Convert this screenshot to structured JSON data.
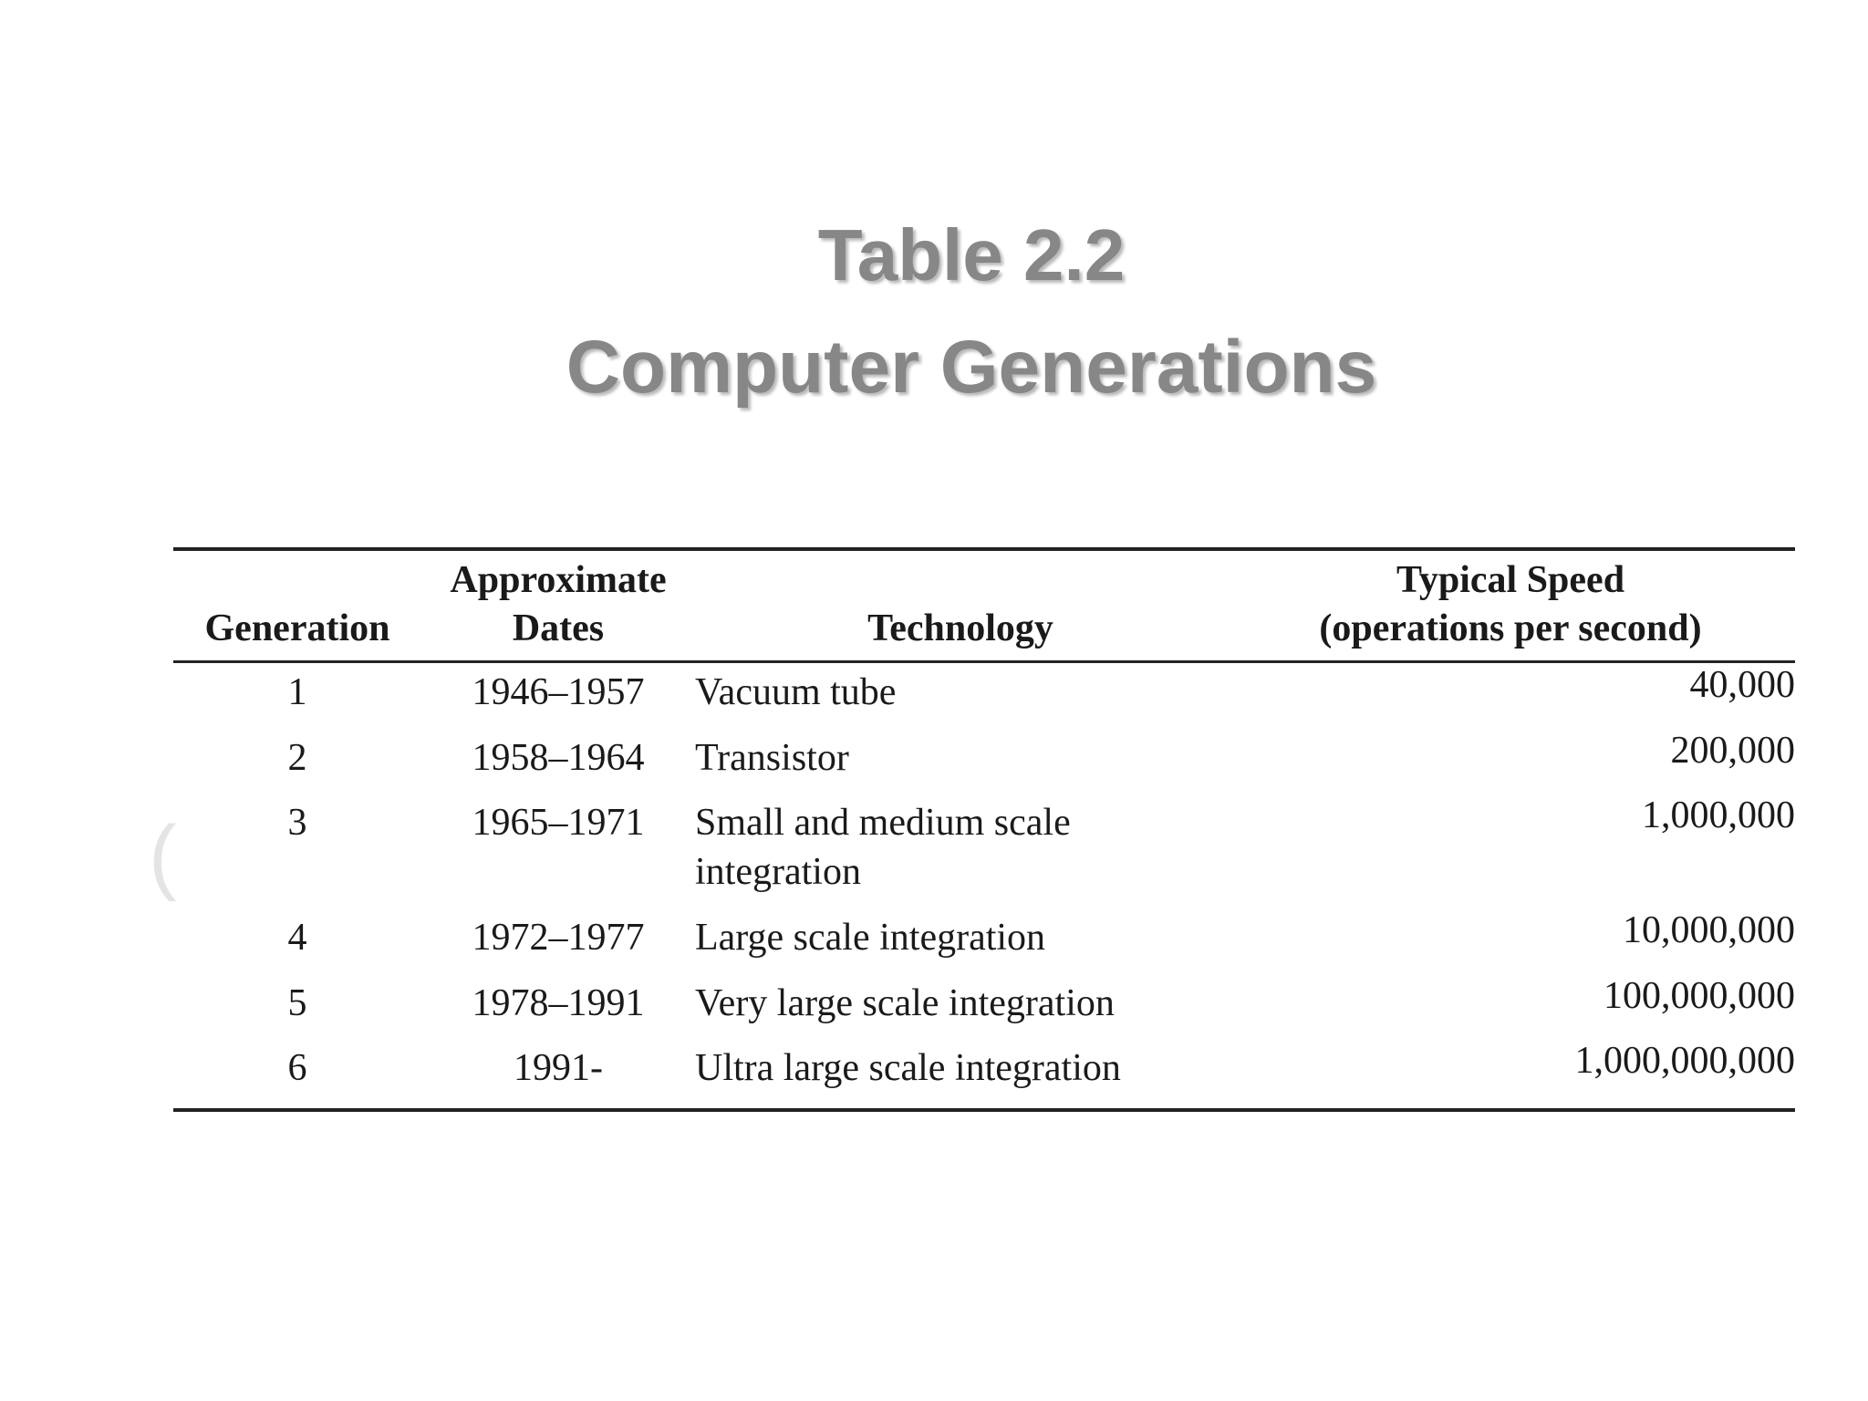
{
  "title": {
    "line1": "Table 2.2",
    "line2": "Computer Generations"
  },
  "table": {
    "headers": {
      "generation": "Generation",
      "dates_line1": "Approximate",
      "dates_line2": "Dates",
      "technology": "Technology",
      "speed_line1": "Typical Speed",
      "speed_line2": "(operations per second)"
    },
    "rows": [
      {
        "generation": "1",
        "dates": "1946–1957",
        "technology": "Vacuum tube",
        "speed": "40,000"
      },
      {
        "generation": "2",
        "dates": "1958–1964",
        "technology": "Transistor",
        "speed": "200,000"
      },
      {
        "generation": "3",
        "dates": "1965–1971",
        "technology": "Small and medium scale integration",
        "speed": "1,000,000"
      },
      {
        "generation": "4",
        "dates": "1972–1977",
        "technology": "Large scale integration",
        "speed": "10,000,000"
      },
      {
        "generation": "5",
        "dates": "1978–1991",
        "technology": "Very large scale integration",
        "speed": "100,000,000"
      },
      {
        "generation": "6",
        "dates": "1991-",
        "technology": "Ultra large scale integration",
        "speed": "1,000,000,000"
      }
    ]
  },
  "stray_mark": "("
}
